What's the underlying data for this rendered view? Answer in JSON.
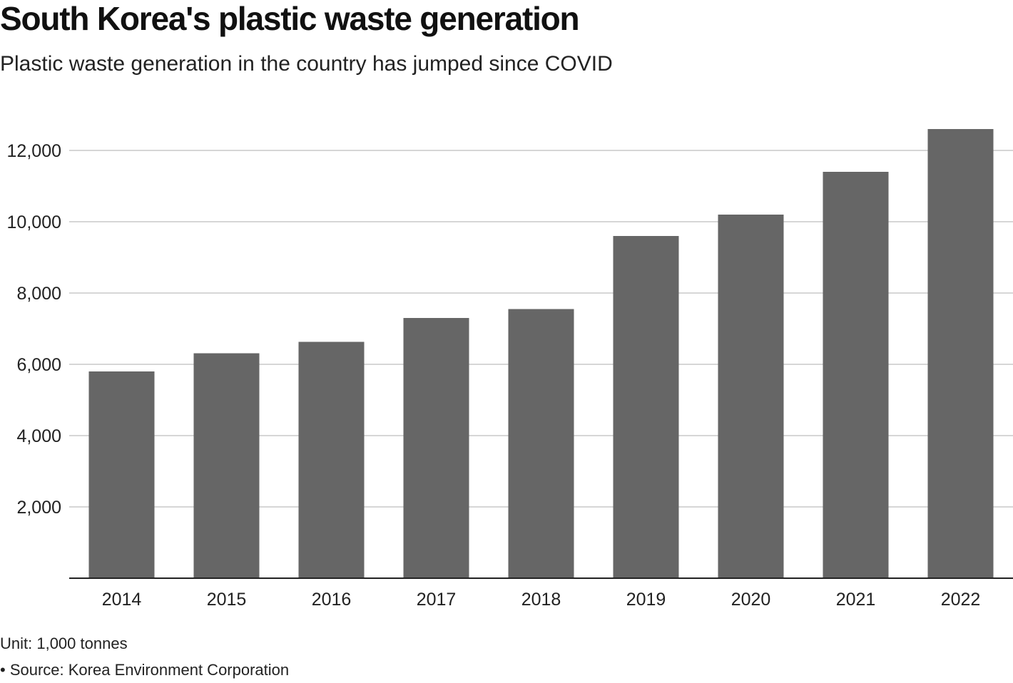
{
  "header": {
    "title": "South Korea's plastic waste generation",
    "subtitle": "Plastic waste generation in the country has jumped since COVID"
  },
  "footer": {
    "unit": "Unit: 1,000 tonnes",
    "source": "• Source: Korea Environment Corporation"
  },
  "colors": {
    "bar": "#666666",
    "grid": "#c8c8c8",
    "axis": "#222222",
    "text": "#222222"
  },
  "chart_data": {
    "type": "bar",
    "title": "South Korea's plastic waste generation",
    "subtitle": "Plastic waste generation in the country has jumped since COVID",
    "xlabel": "",
    "ylabel": "",
    "categories": [
      "2014",
      "2015",
      "2016",
      "2017",
      "2018",
      "2019",
      "2020",
      "2021",
      "2022"
    ],
    "values": [
      5800,
      6310,
      6630,
      7300,
      7550,
      9600,
      10200,
      11400,
      12600
    ],
    "ylim": [
      0,
      13000
    ],
    "yticks": [
      2000,
      4000,
      6000,
      8000,
      10000,
      12000
    ],
    "ytick_labels": [
      "2,000",
      "4,000",
      "6,000",
      "8,000",
      "10,000",
      "12,000"
    ],
    "grid": true,
    "legend": "none"
  }
}
